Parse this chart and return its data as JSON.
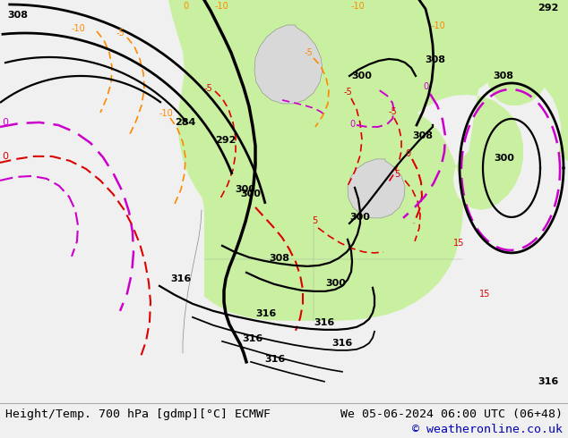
{
  "title_left": "Height/Temp. 700 hPa [gdmp][°C] ECMWF",
  "title_right": "We 05-06-2024 06:00 UTC (06+48)",
  "copyright": "© weatheronline.co.uk",
  "bg_color": "#d8d8d8",
  "land_green": "#c8f0a0",
  "ocean_gray": "#c0c0c0",
  "footer_bg": "#f0f0f0",
  "black": "#000000",
  "red": "#dd0000",
  "orange": "#ff8800",
  "magenta": "#cc00cc",
  "blue_copy": "#0000bb"
}
